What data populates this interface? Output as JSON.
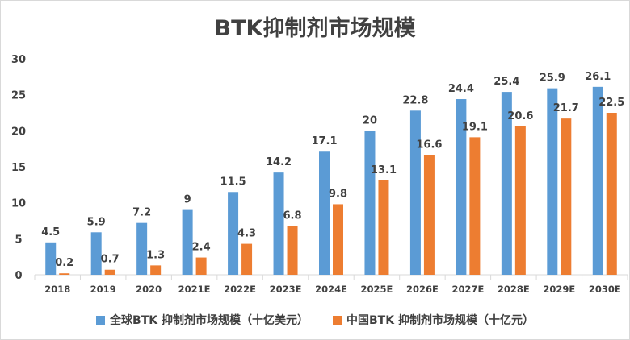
{
  "chart_data": {
    "type": "bar",
    "title": "BTK抑制剂市场规模",
    "categories": [
      "2018",
      "2019",
      "2020",
      "2021E",
      "2022E",
      "2023E",
      "2024E",
      "2025E",
      "2026E",
      "2027E",
      "2028E",
      "2029E",
      "2030E"
    ],
    "series": [
      {
        "name": "全球BTK 抑制剂市场规模（十亿美元）",
        "color": "#5b9bd5",
        "values": [
          4.5,
          5.9,
          7.2,
          9,
          11.5,
          14.2,
          17.1,
          20,
          22.8,
          24.4,
          25.4,
          25.9,
          26.1
        ]
      },
      {
        "name": "中国BTK 抑制剂市场规模（十亿元）",
        "color": "#ed7d31",
        "values": [
          0.2,
          0.7,
          1.3,
          2.4,
          4.3,
          6.8,
          9.8,
          13.1,
          16.6,
          19.1,
          20.6,
          21.7,
          22.5
        ]
      }
    ],
    "ylim": [
      0,
      30
    ],
    "yticks": [
      0,
      5,
      10,
      15,
      20,
      25,
      30
    ],
    "grid": false,
    "legend_position": "bottom"
  }
}
